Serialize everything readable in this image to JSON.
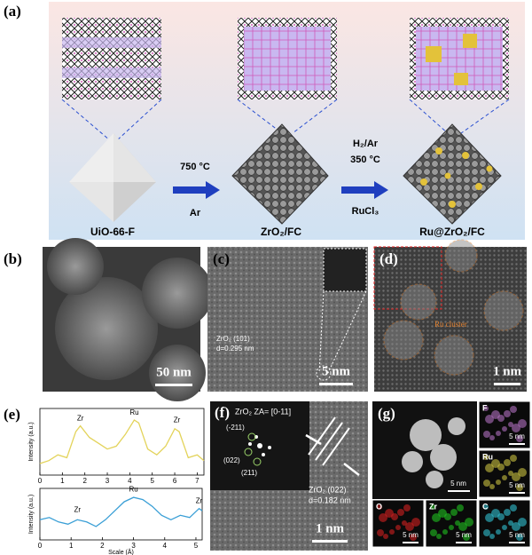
{
  "panel_a": {
    "label": "(a)",
    "step1_top": "750 °C",
    "step1_bottom": "Ar",
    "step2_top1": "H₂/Ar",
    "step2_top2": "350 °C",
    "step2_bottom": "RuCl₃",
    "materials": [
      "UiO-66-F",
      "ZrO₂/FC",
      "Ru@ZrO₂/FC"
    ]
  },
  "panel_b": {
    "label": "(b)",
    "scale": "50 nm"
  },
  "panel_c": {
    "label": "(c)",
    "plane": "ZrO₂ (101)",
    "spacing": "d=0.295 nm",
    "scale": "5 nm"
  },
  "panel_d": {
    "label": "(d)",
    "annotation": "Ru cluster",
    "scale": "1 nm"
  },
  "panel_e": {
    "label": "(e)",
    "charts": [
      {
        "type": "line",
        "ylabel": "Intensity (a.u.)",
        "color": "#e3d35a",
        "x": [
          0,
          0.4,
          0.8,
          1.2,
          1.6,
          1.8,
          2.2,
          2.6,
          3.0,
          3.4,
          3.8,
          4.2,
          4.4,
          4.8,
          5.2,
          5.6,
          6.0,
          6.2,
          6.6,
          7.0,
          7.3
        ],
        "values": [
          0.2,
          0.25,
          0.35,
          0.3,
          0.75,
          0.85,
          0.65,
          0.55,
          0.45,
          0.5,
          0.7,
          0.95,
          0.9,
          0.45,
          0.35,
          0.5,
          0.8,
          0.75,
          0.3,
          0.35,
          0.25
        ],
        "xlim": [
          0,
          7.3
        ],
        "ylim": [
          0,
          1.15
        ],
        "xticks": [
          0,
          1,
          2,
          3,
          4,
          5,
          6,
          7
        ],
        "annotations": [
          "Zr",
          "Ru",
          "Zr"
        ]
      },
      {
        "type": "line",
        "ylabel": "Intensity (a.u.)",
        "xlabel": "Scale (Å)",
        "color": "#3a9fd6",
        "x": [
          0,
          0.3,
          0.6,
          0.9,
          1.2,
          1.5,
          1.8,
          2.1,
          2.4,
          2.7,
          3.0,
          3.3,
          3.6,
          3.9,
          4.2,
          4.5,
          4.8,
          5.1,
          5.2
        ],
        "values": [
          0.45,
          0.5,
          0.4,
          0.35,
          0.45,
          0.4,
          0.3,
          0.45,
          0.65,
          0.85,
          0.95,
          0.9,
          0.75,
          0.55,
          0.45,
          0.55,
          0.5,
          0.7,
          0.65
        ],
        "xlim": [
          0,
          5.2
        ],
        "ylim": [
          0,
          1.15
        ],
        "xticks": [
          0,
          1,
          2,
          3,
          4,
          5
        ],
        "annotations": [
          "Zr",
          "Ru",
          "Zr"
        ]
      }
    ]
  },
  "panel_f": {
    "label": "(f)",
    "zone_axis": "ZrO₂ ZA= [0-11]",
    "spots": [
      "(-211)",
      "(022)",
      "(211)"
    ],
    "plane": "ZrO₂ (022)",
    "spacing": "d=0.182 nm",
    "scale": "1 nm"
  },
  "panel_g": {
    "label": "(g)",
    "scale": "5 nm",
    "maps": [
      {
        "element": "F",
        "scale": "5 nm"
      },
      {
        "element": "Ru",
        "scale": "5 nm"
      },
      {
        "element": "O",
        "scale": "5 nm"
      },
      {
        "element": "Zr",
        "scale": "5 nm"
      },
      {
        "element": "C",
        "scale": "5 nm"
      }
    ]
  }
}
